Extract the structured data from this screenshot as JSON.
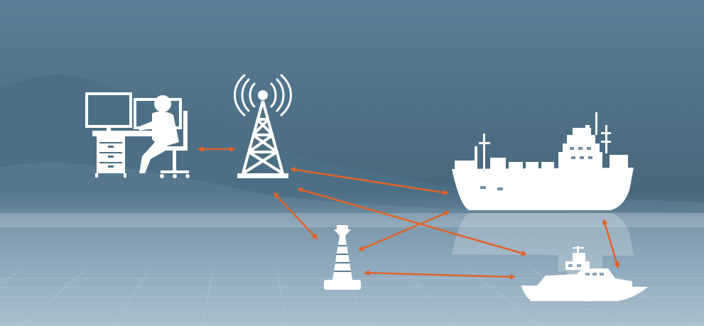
{
  "scene": {
    "sky_top_color": "#5a7f98",
    "sky_bottom_color": "#3a5668",
    "mountain_color": "#4c6f86",
    "water_color": "#8aa6b8",
    "grid_color": "#b9cad6",
    "icon_color": "#ffffff",
    "arrow_color": "#e0622a"
  },
  "nodes": [
    {
      "id": "operator",
      "icon": "operator-workstation-icon"
    },
    {
      "id": "tower",
      "icon": "radio-tower-icon"
    },
    {
      "id": "buoy",
      "icon": "buoy-icon"
    },
    {
      "id": "cargo_ship",
      "icon": "cargo-ship-icon"
    },
    {
      "id": "patrol_boat",
      "icon": "patrol-boat-icon"
    }
  ],
  "links": [
    {
      "from": "operator",
      "to": "tower",
      "direction": "both"
    },
    {
      "from": "tower",
      "to": "cargo_ship",
      "direction": "both"
    },
    {
      "from": "tower",
      "to": "patrol_boat",
      "direction": "both"
    },
    {
      "from": "tower",
      "to": "buoy",
      "direction": "both"
    },
    {
      "from": "buoy",
      "to": "cargo_ship",
      "direction": "both"
    },
    {
      "from": "buoy",
      "to": "patrol_boat",
      "direction": "both"
    },
    {
      "from": "cargo_ship",
      "to": "patrol_boat",
      "direction": "both"
    }
  ]
}
